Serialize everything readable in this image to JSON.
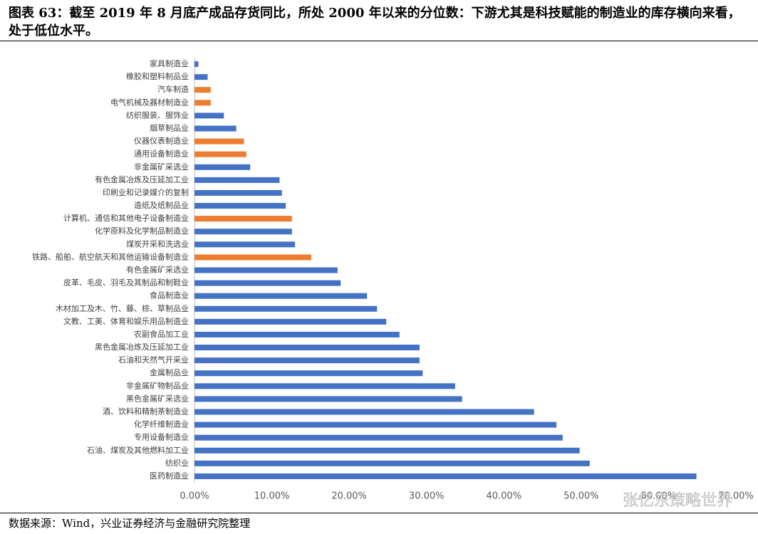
{
  "chart_data": {
    "type": "bar",
    "orientation": "horizontal",
    "title": "图表 63：截至 2019 年 8 月底产成品存货同比，所处 2000 年以来的分位数：下游尤其是科技赋能的制造业的库存横向来看，处于低位水平。",
    "source": "数据来源：Wind，兴业证券经济与金融研究院整理",
    "watermark": "张忆东策略世界",
    "categories": [
      "家具制造业",
      "橡胶和塑料制品业",
      "汽车制造",
      "电气机械及器材制造业",
      "纺织服装、服饰业",
      "烟草制品业",
      "仪器仪表制造业",
      "通用设备制造业",
      "非金属矿采选业",
      "有色金属冶炼及压延加工业",
      "印刷业和记录媒介的复制",
      "造纸及纸制品业",
      "计算机、通信和其他电子设备制造业",
      "化学原料及化学制品制造业",
      "煤炭开采和洗选业",
      "铁路、船舶、航空航天和其他运输设备制造业",
      "有色金属矿采选业",
      "皮革、毛皮、羽毛及其制品和制鞋业",
      "食品制造业",
      "木材加工及木、竹、藤、棕、草制品业",
      "文教、工美、体育和娱乐用品制造业",
      "农副食品加工业",
      "黑色金属冶炼及压延加工业",
      "石油和天然气开采业",
      "金属制品业",
      "非金属矿物制品业",
      "黑色金属矿采选业",
      "酒、饮料和精制茶制造业",
      "化学纤维制造业",
      "专用设备制造业",
      "石油、煤炭及其他燃料加工业",
      "纺织业",
      "医药制造业"
    ],
    "values": [
      0.5,
      1.7,
      2.1,
      2.1,
      3.8,
      5.4,
      6.4,
      6.7,
      7.2,
      11.0,
      11.3,
      11.8,
      12.6,
      12.6,
      13.0,
      15.1,
      18.5,
      18.9,
      22.3,
      23.6,
      24.8,
      26.5,
      29.1,
      29.1,
      29.5,
      33.7,
      34.6,
      43.9,
      46.8,
      47.6,
      49.8,
      51.1,
      64.9
    ],
    "colors": [
      "#4472c4",
      "#4472c4",
      "#ed7d31",
      "#ed7d31",
      "#4472c4",
      "#4472c4",
      "#ed7d31",
      "#ed7d31",
      "#4472c4",
      "#4472c4",
      "#4472c4",
      "#4472c4",
      "#ed7d31",
      "#4472c4",
      "#4472c4",
      "#ed7d31",
      "#4472c4",
      "#4472c4",
      "#4472c4",
      "#4472c4",
      "#4472c4",
      "#4472c4",
      "#4472c4",
      "#4472c4",
      "#4472c4",
      "#4472c4",
      "#4472c4",
      "#4472c4",
      "#4472c4",
      "#4472c4",
      "#4472c4",
      "#4472c4",
      "#4472c4"
    ],
    "xlim": [
      0,
      70
    ],
    "xticks": [
      {
        "value": 0,
        "label": "0.00%"
      },
      {
        "value": 10,
        "label": "10.00%"
      },
      {
        "value": 20,
        "label": "20.00%"
      },
      {
        "value": 30,
        "label": "30.00%"
      },
      {
        "value": 40,
        "label": "40.00%"
      },
      {
        "value": 50,
        "label": "50.00%"
      },
      {
        "value": 60,
        "label": "60.00%"
      },
      {
        "value": 70,
        "label": "70.00%"
      }
    ],
    "grid": false
  }
}
